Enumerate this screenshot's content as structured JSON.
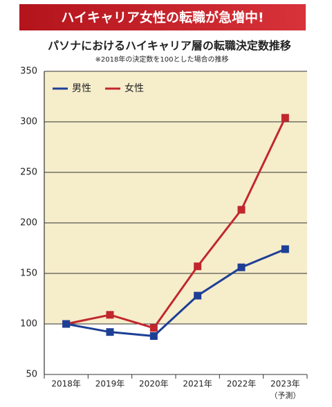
{
  "chart_data": {
    "type": "line",
    "banner": "ハイキャリア女性の転職が急増中!",
    "title": "パソナにおけるハイキャリア層の転職決定数推移",
    "subtitle": "※2018年の決定数を100とした場合の推移",
    "categories": [
      "2018年",
      "2019年",
      "2020年",
      "2021年",
      "2022年",
      "2023年"
    ],
    "annotation": "（予測）",
    "series": [
      {
        "name": "男性",
        "color": "#1d3f95",
        "values": [
          100,
          92,
          88,
          128,
          156,
          174
        ]
      },
      {
        "name": "女性",
        "color": "#c1272d",
        "values": [
          100,
          109,
          96,
          157,
          213,
          304
        ]
      }
    ],
    "ylim": [
      50,
      350
    ],
    "yticks": [
      50,
      100,
      150,
      200,
      250,
      300,
      350
    ],
    "grid": true,
    "legend": "top-left"
  }
}
